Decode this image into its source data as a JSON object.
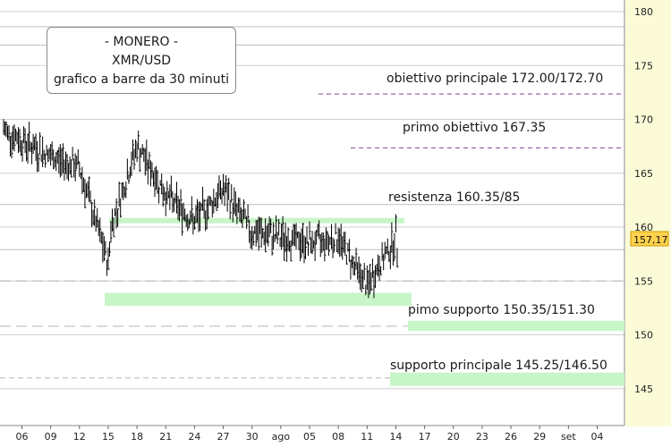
{
  "title_box": {
    "line1": "- MONERO -",
    "line2": "XMR/USD",
    "line3": "grafico a barre da 30 minuti"
  },
  "colors": {
    "axis_panel": "#fbfbd8",
    "bars": "#000000",
    "zone": "#c8f5c8",
    "target_line": "#7a4a86",
    "grid": "#cfcfcf"
  },
  "annotations": {
    "main_target": "obiettivo principale 172.00/172.70",
    "first_target": "primo obiettivo 167.35",
    "resistance": "resistenza 160.35/85",
    "first_support": "pimo supporto 150.35/151.30",
    "main_support": "supporto principale 145.25/146.50"
  },
  "current_price_label": "157,17",
  "chart_data": {
    "type": "bar",
    "y_ticks": [
      180,
      175,
      170,
      165,
      160,
      155,
      150,
      145
    ],
    "ylim": [
      142.5,
      181
    ],
    "x_ticks": [
      "06",
      "09",
      "12",
      "15",
      "18",
      "21",
      "24",
      "27",
      "30",
      "ago",
      "05",
      "08",
      "11",
      "14",
      "17",
      "20",
      "23",
      "26",
      "29",
      "set",
      "04"
    ],
    "current_price": 157.17,
    "levels": {
      "main_target": [
        172.0,
        172.7
      ],
      "first_target": 167.35,
      "resistance": [
        160.35,
        160.85
      ],
      "first_support": [
        150.35,
        151.3
      ],
      "main_support": [
        145.25,
        146.5
      ],
      "lower_zone": [
        152.7,
        153.9
      ]
    },
    "price_path": [
      {
        "x": "06",
        "y": 169.0
      },
      {
        "x": "09",
        "y": 166.5
      },
      {
        "x": "12",
        "y": 165.5
      },
      {
        "x": "15",
        "y": 156.5
      },
      {
        "x": "15",
        "y": 160.0
      },
      {
        "x": "18",
        "y": 167.5
      },
      {
        "x": "21",
        "y": 163.0
      },
      {
        "x": "24",
        "y": 160.5
      },
      {
        "x": "27",
        "y": 163.5
      },
      {
        "x": "30",
        "y": 159.5
      },
      {
        "x": "05",
        "y": 158.5
      },
      {
        "x": "08",
        "y": 159.0
      },
      {
        "x": "11",
        "y": 154.5
      },
      {
        "x": "14",
        "y": 159.0
      },
      {
        "x": "15",
        "y": 157.17
      }
    ]
  }
}
